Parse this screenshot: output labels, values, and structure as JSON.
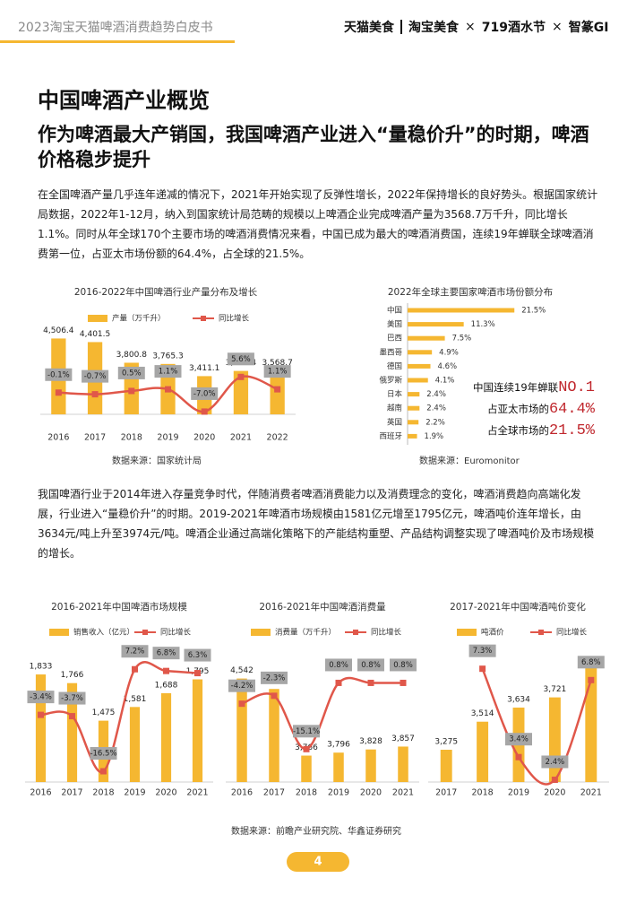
{
  "header": {
    "title": "2023淘宝天猫啤酒消费趋势白皮书",
    "logos": [
      "天猫美食",
      "淘宝美食",
      "×",
      "719酒水节",
      "×",
      "智篆GI"
    ]
  },
  "title": "中国啤酒产业概览",
  "subtitle": "作为啤酒最大产销国，我国啤酒产业进入“量稳价升”的时期，啤酒价格稳步提升",
  "paragraphs": [
    "在全国啤酒产量几乎连年递减的情况下，2021年开始实现了反弹性增长，2022年保持增长的良好势头。根据国家统计局数据，2022年1-12月，纳入到国家统计局范畴的规模以上啤酒企业完成啤酒产量为3568.7万千升，同比增长1.1%。同时从年全球170个主要市场的啤酒消费情况来看，中国已成为最大的啤酒消费国，连续19年蝉联全球啤酒消费第一位，占亚太市场份额的64.4%，占全球的21.5%。",
    "我国啤酒行业于2014年进入存量竞争时代，伴随消费者啤酒消费能力以及消费理念的变化，啤酒消费趋向高端化发展，行业进入“量稳价升”的时期。2019-2021年啤酒市场规模由1581亿元增至1795亿元，啤酒吨价连年增长，由3634元/吨上升至3974元/吨。啤酒企业通过高端化策略下的产能结构重塑、产品结构调整实现了啤酒吨价及市场规模的增长。"
  ],
  "chart_data": [
    {
      "type": "combo",
      "title": "2016-2022年中国啤酒行业产量分布及增长",
      "categories": [
        "2016",
        "2017",
        "2018",
        "2019",
        "2020",
        "2021",
        "2022"
      ],
      "series": [
        {
          "name": "产量（万千升）",
          "type": "bar",
          "color": "#f5b731",
          "values": [
            4506.4,
            4401.5,
            3800.8,
            3765.3,
            3411.1,
            3562.4,
            3568.7
          ],
          "value_labels": [
            "4,506.4",
            "4,401.5",
            "3,800.8",
            "3,765.3",
            "3,411.1",
            "3,562.4",
            "3,568.7"
          ]
        },
        {
          "name": "同比增长",
          "type": "line",
          "axis": "y2",
          "color": "#e0574a",
          "values": [
            -0.1,
            -0.7,
            0.5,
            1.1,
            -7.0,
            5.6,
            1.1
          ],
          "value_labels": [
            "-0.1%",
            "-0.7%",
            "0.5%",
            "1.1%",
            "-7.0%",
            "5.6%",
            "1.1%"
          ]
        }
      ],
      "ylim": [
        2300,
        4700
      ],
      "y2lim": [
        -8,
        22
      ],
      "legend": "top"
    },
    {
      "type": "barh",
      "title": "2022年全球主要国家啤酒市场份额分布",
      "categories": [
        "中国",
        "美国",
        "巴西",
        "墨西哥",
        "德国",
        "俄罗斯",
        "日本",
        "越南",
        "英国",
        "西班牙"
      ],
      "values": [
        21.5,
        11.3,
        7.5,
        4.9,
        4.6,
        4.1,
        2.4,
        2.4,
        2.2,
        1.9
      ],
      "value_labels": [
        "21.5%",
        "11.3%",
        "7.5%",
        "4.9%",
        "4.6%",
        "4.1%",
        "2.4%",
        "2.4%",
        "2.2%",
        "1.9%"
      ],
      "color": "#f5b731",
      "xlim": [
        0,
        22
      ],
      "annotations": [
        {
          "text": "中国连续19年蝉联",
          "highlight": "NO.1"
        },
        {
          "text": "占亚太市场的",
          "highlight": "64.4%"
        },
        {
          "text": "占全球市场的",
          "highlight": "21.5%"
        }
      ]
    },
    {
      "type": "combo",
      "title": "2016-2021年中国啤酒市场规模",
      "categories": [
        "2016",
        "2017",
        "2018",
        "2019",
        "2020",
        "2021"
      ],
      "series": [
        {
          "name": "销售收入（亿元）",
          "type": "bar",
          "color": "#f5b731",
          "values": [
            1833,
            1766,
            1475,
            1581,
            1688,
            1795
          ],
          "value_labels": [
            "1,833",
            "1,766",
            "1,475",
            "1,581",
            "1,688",
            "1,795"
          ]
        },
        {
          "name": "同比增长",
          "type": "line",
          "axis": "y2",
          "color": "#e0574a",
          "values": [
            -3.4,
            -3.7,
            -16.5,
            7.2,
            6.8,
            6.3
          ],
          "value_labels": [
            "-3.4%",
            "-3.7%",
            "-16.5%",
            "7.2%",
            "6.8%",
            "6.3%"
          ]
        }
      ],
      "ylim": [
        1000,
        2000
      ],
      "y2lim": [
        -19,
        11
      ],
      "legend": "top"
    },
    {
      "type": "combo",
      "title": "2016-2021年中国啤酒消费量",
      "categories": [
        "2016",
        "2017",
        "2018",
        "2019",
        "2020",
        "2021"
      ],
      "series": [
        {
          "name": "消费量（万千升）",
          "type": "bar",
          "color": "#f5b731",
          "values": [
            4542,
            4437,
            3766,
            3796,
            3828,
            3857
          ],
          "value_labels": [
            "4,542",
            "4,437",
            "3,766",
            "3,796",
            "3,828",
            "3,857"
          ]
        },
        {
          "name": "同比增长",
          "type": "line",
          "axis": "y2",
          "color": "#e0574a",
          "values": [
            -4.2,
            -2.3,
            -15.1,
            0.8,
            0.8,
            0.8
          ],
          "value_labels": [
            "-4.2%",
            "-2.3%",
            "-15.1%",
            "0.8%",
            "0.8%",
            "0.8%"
          ]
        }
      ],
      "ylim": [
        3500,
        4800
      ],
      "y2lim": [
        -23,
        8
      ],
      "legend": "top"
    },
    {
      "type": "combo",
      "title": "2017-2021年中国啤酒吨价变化",
      "categories": [
        "2017",
        "2018",
        "2019",
        "2020",
        "2021"
      ],
      "series": [
        {
          "name": "吨酒价",
          "type": "bar",
          "color": "#f5b731",
          "values": [
            3275,
            3514,
            3634,
            3721,
            3974
          ],
          "value_labels": [
            "3,275",
            "3,514",
            "3,634",
            "3,721",
            "3,974"
          ]
        },
        {
          "name": "同比增长",
          "type": "line",
          "axis": "y2",
          "color": "#e0574a",
          "values": [
            null,
            7.3,
            3.4,
            2.4,
            6.8
          ],
          "value_labels": [
            null,
            "7.3%",
            "3.4%",
            "2.4%",
            "6.8%"
          ]
        }
      ],
      "ylim": [
        3000,
        4100
      ],
      "y2lim": [
        2.3,
        8
      ],
      "legend": "top"
    }
  ],
  "sources": [
    "数据来源：国家统计局",
    "数据来源：Euromonitor",
    "数据来源：前瞻产业研究院、华鑫证券研究"
  ],
  "page_number": 4
}
